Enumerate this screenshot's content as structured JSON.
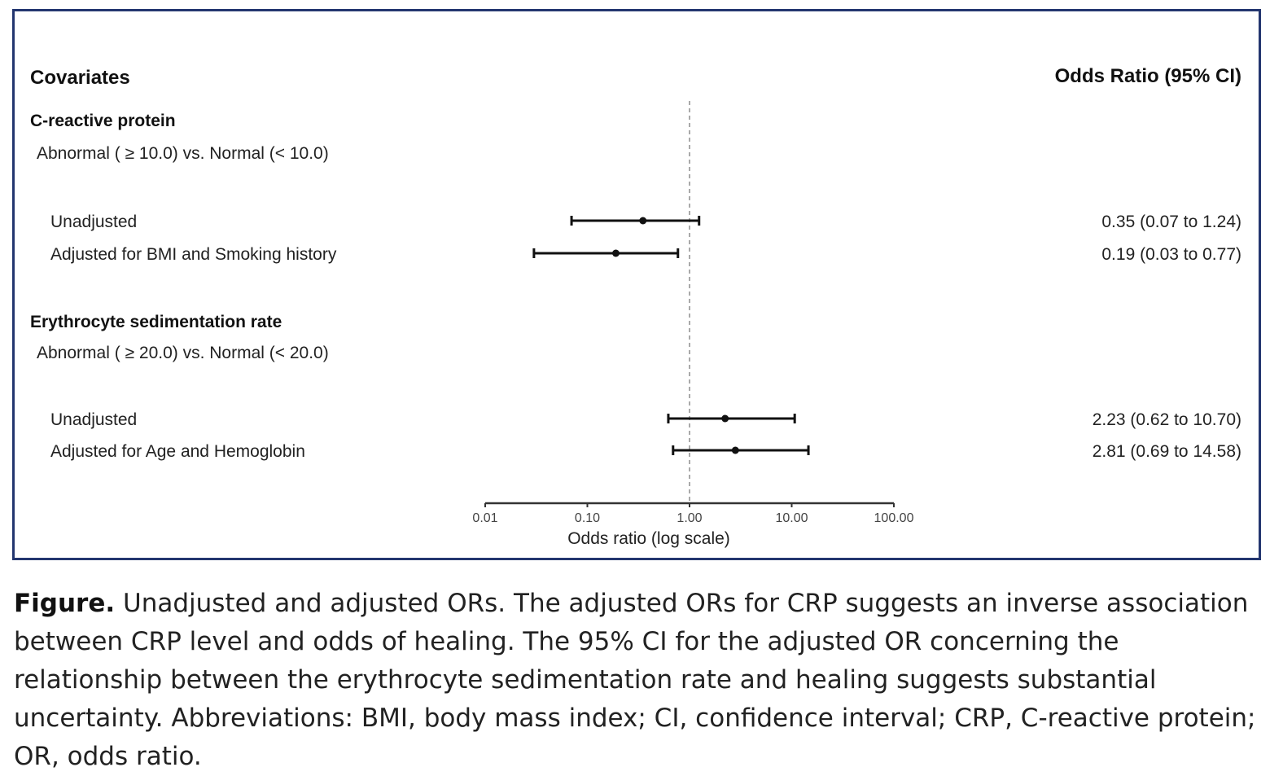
{
  "chart_data": {
    "type": "forest",
    "xscale": "log",
    "xlim": [
      0.01,
      100
    ],
    "reference_line": 1.0,
    "xlabel": "Odds ratio (log scale)",
    "xticks": [
      {
        "value": 0.01,
        "label": "0.01"
      },
      {
        "value": 0.1,
        "label": "0.10"
      },
      {
        "value": 1,
        "label": "1.00"
      },
      {
        "value": 10,
        "label": "10.00"
      },
      {
        "value": 100,
        "label": "100.00"
      }
    ],
    "left_header": "Covariates",
    "right_header": "Odds Ratio (95% CI)",
    "groups": [
      {
        "name": "C-reactive protein",
        "comparison": "Abnormal ( ≥ 10.0) vs. Normal (< 10.0)",
        "rows": [
          {
            "label": "Unadjusted",
            "or": 0.35,
            "lower": 0.07,
            "upper": 1.24,
            "text": "0.35 (0.07 to 1.24)"
          },
          {
            "label": "Adjusted for BMI and Smoking history",
            "or": 0.19,
            "lower": 0.03,
            "upper": 0.77,
            "text": "0.19 (0.03 to 0.77)"
          }
        ]
      },
      {
        "name": "Erythrocyte sedimentation rate",
        "comparison": "Abnormal ( ≥ 20.0) vs. Normal (< 20.0)",
        "rows": [
          {
            "label": "Unadjusted",
            "or": 2.23,
            "lower": 0.62,
            "upper": 10.7,
            "text": "2.23 (0.62 to 10.70)"
          },
          {
            "label": "Adjusted for Age and Hemoglobin",
            "or": 2.81,
            "lower": 0.69,
            "upper": 14.58,
            "text": "2.81 (0.69 to 14.58)"
          }
        ]
      }
    ]
  },
  "caption": {
    "lead": "Figure.",
    "text": " Unadjusted and adjusted ORs. The adjusted ORs for CRP suggests an inverse association between CRP level and odds of healing. The 95% CI for the adjusted OR concerning the relationship between the erythrocyte sedimentation rate and healing suggests substantial uncertainty. Abbreviations: BMI, body mass index; CI, confidence interval; CRP, C-reactive protein; OR, odds ratio."
  },
  "colors": {
    "frame": "#23366f",
    "ink": "#111111",
    "reference": "#aaaaaa"
  }
}
